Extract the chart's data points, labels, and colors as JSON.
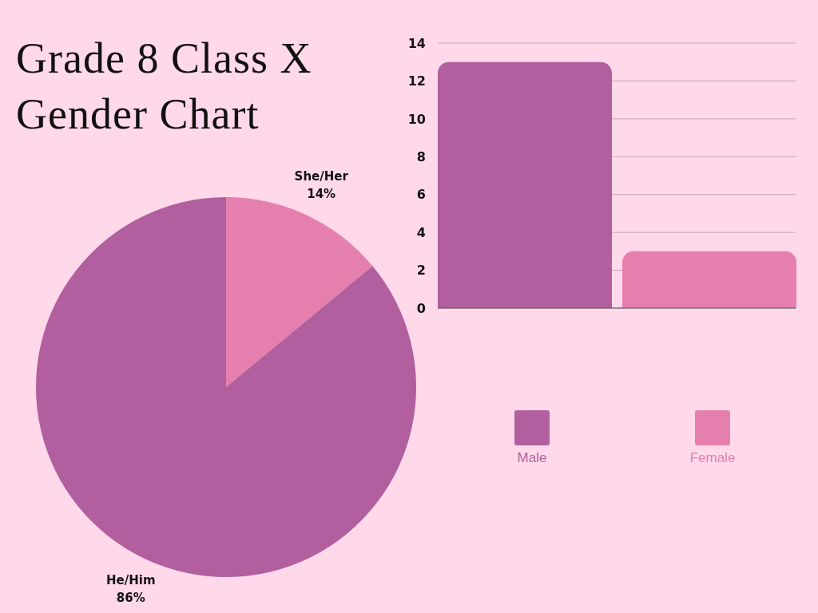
{
  "chart_data": [
    {
      "type": "pie",
      "title": "Grade 8 Class X Gender Chart",
      "categories": [
        "She/Her",
        "He/Him"
      ],
      "values": [
        14,
        86
      ],
      "colors": [
        "#e57fae",
        "#b15f9e"
      ],
      "value_labels": [
        "14%",
        "86%"
      ]
    },
    {
      "type": "bar",
      "categories": [
        null
      ],
      "series": [
        {
          "name": "Male",
          "color": "#b15f9e",
          "values": [
            13
          ]
        },
        {
          "name": "Female",
          "color": "#e57fae",
          "values": [
            3
          ]
        }
      ],
      "ylim": [
        0,
        14
      ],
      "yticks": [
        0,
        2,
        4,
        6,
        8,
        10,
        12,
        14
      ],
      "grid": "y",
      "legend": "bottom",
      "tick_labels": "y"
    }
  ]
}
